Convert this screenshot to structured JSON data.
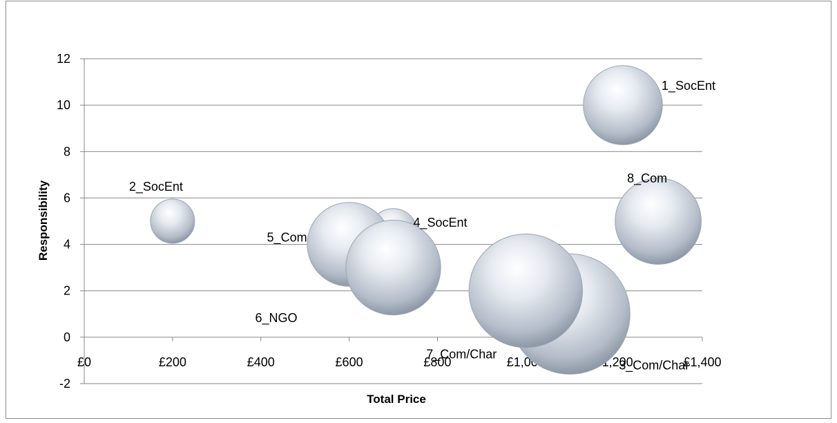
{
  "chart_data": {
    "type": "bubble",
    "title": "",
    "xlabel": "Total Price",
    "ylabel": "Responsibility",
    "xlim": [
      0,
      1400
    ],
    "ylim": [
      -2,
      12
    ],
    "x_ticks": [
      {
        "value": 0,
        "label": "£0"
      },
      {
        "value": 200,
        "label": "£200"
      },
      {
        "value": 400,
        "label": "£400"
      },
      {
        "value": 600,
        "label": "£600"
      },
      {
        "value": 800,
        "label": "£800"
      },
      {
        "value": 1000,
        "label": "£1,000"
      },
      {
        "value": 1200,
        "label": "£1,200"
      },
      {
        "value": 1400,
        "label": "£1,400"
      }
    ],
    "y_ticks": [
      -2,
      0,
      2,
      4,
      6,
      8,
      10,
      12
    ],
    "grid": "horizontal",
    "legend": "none",
    "colors": {
      "bubble_light": "#ffffff",
      "bubble_mid": "#c9d1dc",
      "bubble_dark": "#7f8a99",
      "gridline": "#868686"
    },
    "points": [
      {
        "label": "1_SocEnt",
        "x": 1220,
        "y": 10,
        "size": 3.2
      },
      {
        "label": "2_SocEnt",
        "x": 200,
        "y": 5,
        "size": 1.0
      },
      {
        "label": "3_Com/Char",
        "x": 1100,
        "y": 1,
        "size": 7.4
      },
      {
        "label": "4_SocEnt",
        "x": 700,
        "y": 4.5,
        "size": 1.2
      },
      {
        "label": "5_Com",
        "x": 600,
        "y": 4,
        "size": 3.6
      },
      {
        "label": "6_NGO",
        "x": 700,
        "y": 3,
        "size": 4.6
      },
      {
        "label": "7_Com/Char",
        "x": 1000,
        "y": 2,
        "size": 6.6
      },
      {
        "label": "8_Com",
        "x": 1300,
        "y": 5,
        "size": 3.8
      }
    ]
  }
}
